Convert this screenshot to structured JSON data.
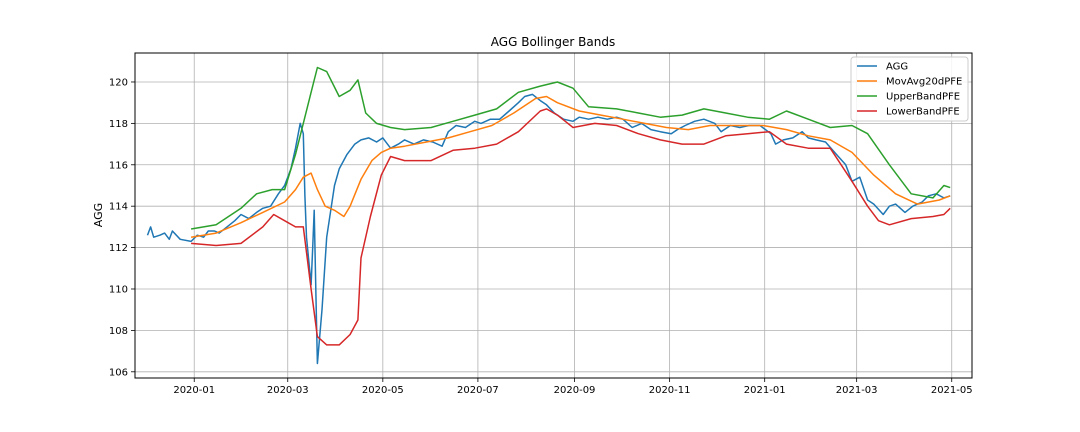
{
  "chart_data": {
    "type": "line",
    "title": "AGG Bollinger Bands",
    "xlabel": "",
    "ylabel": "AGG",
    "x_range": [
      "2019-11-24",
      "2021-05-14"
    ],
    "ylim": [
      105.7,
      121.4
    ],
    "grid": true,
    "legend_position": "top-right",
    "x_ticks": [
      "2020-01",
      "2020-03",
      "2020-05",
      "2020-07",
      "2020-09",
      "2020-11",
      "2021-01",
      "2021-03",
      "2021-05"
    ],
    "x_tick_labels": [
      "2020-01",
      "2020-03",
      "2020-05",
      "2020-07",
      "2020-09",
      "2020-11",
      "2021-01",
      "2021-03",
      "2021-05"
    ],
    "y_ticks": [
      106,
      108,
      110,
      112,
      114,
      116,
      118,
      120
    ],
    "series": [
      {
        "name": "AGG",
        "color": "#1f77b4",
        "points": [
          [
            "2019-12-02",
            112.6
          ],
          [
            "2019-12-04",
            113.0
          ],
          [
            "2019-12-06",
            112.5
          ],
          [
            "2019-12-10",
            112.6
          ],
          [
            "2019-12-13",
            112.7
          ],
          [
            "2019-12-16",
            112.4
          ],
          [
            "2019-12-18",
            112.8
          ],
          [
            "2019-12-23",
            112.4
          ],
          [
            "2019-12-30",
            112.3
          ],
          [
            "2020-01-03",
            112.6
          ],
          [
            "2020-01-07",
            112.5
          ],
          [
            "2020-01-10",
            112.8
          ],
          [
            "2020-01-14",
            112.8
          ],
          [
            "2020-01-17",
            112.7
          ],
          [
            "2020-01-22",
            113.0
          ],
          [
            "2020-01-27",
            113.3
          ],
          [
            "2020-01-31",
            113.6
          ],
          [
            "2020-02-05",
            113.4
          ],
          [
            "2020-02-10",
            113.7
          ],
          [
            "2020-02-14",
            113.9
          ],
          [
            "2020-02-19",
            114.0
          ],
          [
            "2020-02-24",
            114.6
          ],
          [
            "2020-02-28",
            115.0
          ],
          [
            "2020-03-03",
            115.8
          ],
          [
            "2020-03-06",
            116.8
          ],
          [
            "2020-03-09",
            118.0
          ],
          [
            "2020-03-11",
            117.5
          ],
          [
            "2020-03-12",
            114.5
          ],
          [
            "2020-03-13",
            112.5
          ],
          [
            "2020-03-16",
            110.2
          ],
          [
            "2020-03-17",
            112.0
          ],
          [
            "2020-03-18",
            113.8
          ],
          [
            "2020-03-19",
            110.0
          ],
          [
            "2020-03-20",
            106.4
          ],
          [
            "2020-03-23",
            109.0
          ],
          [
            "2020-03-26",
            112.5
          ],
          [
            "2020-03-31",
            115.0
          ],
          [
            "2020-04-03",
            115.8
          ],
          [
            "2020-04-08",
            116.5
          ],
          [
            "2020-04-13",
            117.0
          ],
          [
            "2020-04-17",
            117.2
          ],
          [
            "2020-04-22",
            117.3
          ],
          [
            "2020-04-27",
            117.1
          ],
          [
            "2020-05-01",
            117.3
          ],
          [
            "2020-05-06",
            116.8
          ],
          [
            "2020-05-11",
            117.0
          ],
          [
            "2020-05-15",
            117.2
          ],
          [
            "2020-05-21",
            117.0
          ],
          [
            "2020-05-27",
            117.2
          ],
          [
            "2020-06-02",
            117.1
          ],
          [
            "2020-06-08",
            116.9
          ],
          [
            "2020-06-12",
            117.6
          ],
          [
            "2020-06-17",
            117.9
          ],
          [
            "2020-06-23",
            117.8
          ],
          [
            "2020-06-29",
            118.1
          ],
          [
            "2020-07-03",
            118.0
          ],
          [
            "2020-07-09",
            118.2
          ],
          [
            "2020-07-15",
            118.2
          ],
          [
            "2020-07-21",
            118.6
          ],
          [
            "2020-07-27",
            119.0
          ],
          [
            "2020-07-31",
            119.3
          ],
          [
            "2020-08-05",
            119.4
          ],
          [
            "2020-08-10",
            119.1
          ],
          [
            "2020-08-14",
            118.9
          ],
          [
            "2020-08-19",
            118.5
          ],
          [
            "2020-08-25",
            118.2
          ],
          [
            "2020-08-31",
            118.1
          ],
          [
            "2020-09-04",
            118.3
          ],
          [
            "2020-09-10",
            118.2
          ],
          [
            "2020-09-16",
            118.3
          ],
          [
            "2020-09-22",
            118.2
          ],
          [
            "2020-09-28",
            118.3
          ],
          [
            "2020-10-02",
            118.2
          ],
          [
            "2020-10-08",
            117.8
          ],
          [
            "2020-10-14",
            118.0
          ],
          [
            "2020-10-20",
            117.7
          ],
          [
            "2020-10-26",
            117.6
          ],
          [
            "2020-11-02",
            117.5
          ],
          [
            "2020-11-06",
            117.7
          ],
          [
            "2020-11-11",
            117.9
          ],
          [
            "2020-11-17",
            118.1
          ],
          [
            "2020-11-23",
            118.2
          ],
          [
            "2020-11-30",
            118.0
          ],
          [
            "2020-12-04",
            117.6
          ],
          [
            "2020-12-10",
            117.9
          ],
          [
            "2020-12-16",
            117.8
          ],
          [
            "2020-12-22",
            117.9
          ],
          [
            "2020-12-29",
            117.9
          ],
          [
            "2021-01-05",
            117.5
          ],
          [
            "2021-01-08",
            117.0
          ],
          [
            "2021-01-13",
            117.2
          ],
          [
            "2021-01-19",
            117.3
          ],
          [
            "2021-01-25",
            117.6
          ],
          [
            "2021-01-29",
            117.3
          ],
          [
            "2021-02-03",
            117.2
          ],
          [
            "2021-02-09",
            117.1
          ],
          [
            "2021-02-16",
            116.5
          ],
          [
            "2021-02-22",
            116.0
          ],
          [
            "2021-02-26",
            115.2
          ],
          [
            "2021-03-03",
            115.4
          ],
          [
            "2021-03-08",
            114.3
          ],
          [
            "2021-03-12",
            114.1
          ],
          [
            "2021-03-18",
            113.6
          ],
          [
            "2021-03-22",
            114.0
          ],
          [
            "2021-03-26",
            114.1
          ],
          [
            "2021-04-01",
            113.7
          ],
          [
            "2021-04-06",
            114.0
          ],
          [
            "2021-04-12",
            114.2
          ],
          [
            "2021-04-16",
            114.5
          ],
          [
            "2021-04-21",
            114.6
          ],
          [
            "2021-04-26",
            114.4
          ],
          [
            "2021-04-30",
            114.5
          ]
        ]
      },
      {
        "name": "MovAvg20dPFE",
        "color": "#ff7f0e",
        "points": [
          [
            "2019-12-30",
            112.5
          ],
          [
            "2020-01-15",
            112.7
          ],
          [
            "2020-01-31",
            113.2
          ],
          [
            "2020-02-14",
            113.7
          ],
          [
            "2020-02-28",
            114.2
          ],
          [
            "2020-03-06",
            114.8
          ],
          [
            "2020-03-11",
            115.4
          ],
          [
            "2020-03-16",
            115.6
          ],
          [
            "2020-03-20",
            114.8
          ],
          [
            "2020-03-25",
            114.0
          ],
          [
            "2020-03-31",
            113.8
          ],
          [
            "2020-04-06",
            113.5
          ],
          [
            "2020-04-10",
            114.0
          ],
          [
            "2020-04-17",
            115.3
          ],
          [
            "2020-04-24",
            116.2
          ],
          [
            "2020-04-30",
            116.6
          ],
          [
            "2020-05-06",
            116.8
          ],
          [
            "2020-05-15",
            116.9
          ],
          [
            "2020-05-29",
            117.1
          ],
          [
            "2020-06-12",
            117.3
          ],
          [
            "2020-06-26",
            117.6
          ],
          [
            "2020-07-10",
            117.9
          ],
          [
            "2020-07-24",
            118.5
          ],
          [
            "2020-08-07",
            119.2
          ],
          [
            "2020-08-14",
            119.3
          ],
          [
            "2020-08-21",
            119.0
          ],
          [
            "2020-09-04",
            118.6
          ],
          [
            "2020-09-18",
            118.4
          ],
          [
            "2020-10-02",
            118.2
          ],
          [
            "2020-10-16",
            118.0
          ],
          [
            "2020-10-30",
            117.8
          ],
          [
            "2020-11-13",
            117.7
          ],
          [
            "2020-11-27",
            117.9
          ],
          [
            "2020-12-11",
            117.9
          ],
          [
            "2020-12-31",
            117.9
          ],
          [
            "2021-01-15",
            117.7
          ],
          [
            "2021-01-29",
            117.4
          ],
          [
            "2021-02-12",
            117.2
          ],
          [
            "2021-02-26",
            116.6
          ],
          [
            "2021-03-12",
            115.5
          ],
          [
            "2021-03-26",
            114.6
          ],
          [
            "2021-04-09",
            114.1
          ],
          [
            "2021-04-23",
            114.3
          ],
          [
            "2021-04-30",
            114.5
          ]
        ]
      },
      {
        "name": "UpperBandPFE",
        "color": "#2ca02c",
        "points": [
          [
            "2019-12-30",
            112.9
          ],
          [
            "2020-01-15",
            113.1
          ],
          [
            "2020-01-31",
            113.9
          ],
          [
            "2020-02-10",
            114.6
          ],
          [
            "2020-02-20",
            114.8
          ],
          [
            "2020-02-28",
            114.8
          ],
          [
            "2020-03-06",
            116.5
          ],
          [
            "2020-03-11",
            118.0
          ],
          [
            "2020-03-16",
            119.5
          ],
          [
            "2020-03-20",
            120.7
          ],
          [
            "2020-03-26",
            120.5
          ],
          [
            "2020-04-03",
            119.3
          ],
          [
            "2020-04-10",
            119.6
          ],
          [
            "2020-04-15",
            120.1
          ],
          [
            "2020-04-20",
            118.5
          ],
          [
            "2020-04-27",
            118.0
          ],
          [
            "2020-05-06",
            117.8
          ],
          [
            "2020-05-15",
            117.7
          ],
          [
            "2020-06-01",
            117.8
          ],
          [
            "2020-06-15",
            118.1
          ],
          [
            "2020-06-29",
            118.4
          ],
          [
            "2020-07-13",
            118.7
          ],
          [
            "2020-07-27",
            119.5
          ],
          [
            "2020-08-10",
            119.8
          ],
          [
            "2020-08-21",
            120.0
          ],
          [
            "2020-08-31",
            119.7
          ],
          [
            "2020-09-10",
            118.8
          ],
          [
            "2020-09-28",
            118.7
          ],
          [
            "2020-10-12",
            118.5
          ],
          [
            "2020-10-26",
            118.3
          ],
          [
            "2020-11-09",
            118.4
          ],
          [
            "2020-11-23",
            118.7
          ],
          [
            "2020-12-07",
            118.5
          ],
          [
            "2020-12-21",
            118.3
          ],
          [
            "2021-01-04",
            118.2
          ],
          [
            "2021-01-15",
            118.6
          ],
          [
            "2021-01-29",
            118.2
          ],
          [
            "2021-02-12",
            117.8
          ],
          [
            "2021-02-26",
            117.9
          ],
          [
            "2021-03-08",
            117.5
          ],
          [
            "2021-03-22",
            116.0
          ],
          [
            "2021-04-05",
            114.6
          ],
          [
            "2021-04-19",
            114.4
          ],
          [
            "2021-04-26",
            115.0
          ],
          [
            "2021-04-30",
            114.9
          ]
        ]
      },
      {
        "name": "LowerBandPFE",
        "color": "#d62728",
        "points": [
          [
            "2019-12-30",
            112.2
          ],
          [
            "2020-01-15",
            112.1
          ],
          [
            "2020-01-31",
            112.2
          ],
          [
            "2020-02-14",
            113.0
          ],
          [
            "2020-02-21",
            113.6
          ],
          [
            "2020-02-28",
            113.3
          ],
          [
            "2020-03-06",
            113.0
          ],
          [
            "2020-03-11",
            113.0
          ],
          [
            "2020-03-16",
            110.0
          ],
          [
            "2020-03-20",
            107.7
          ],
          [
            "2020-03-26",
            107.3
          ],
          [
            "2020-04-03",
            107.3
          ],
          [
            "2020-04-10",
            107.8
          ],
          [
            "2020-04-15",
            108.5
          ],
          [
            "2020-04-17",
            111.5
          ],
          [
            "2020-04-23",
            113.5
          ],
          [
            "2020-04-30",
            115.5
          ],
          [
            "2020-05-06",
            116.4
          ],
          [
            "2020-05-15",
            116.2
          ],
          [
            "2020-06-01",
            116.2
          ],
          [
            "2020-06-15",
            116.7
          ],
          [
            "2020-06-29",
            116.8
          ],
          [
            "2020-07-13",
            117.0
          ],
          [
            "2020-07-27",
            117.6
          ],
          [
            "2020-08-10",
            118.6
          ],
          [
            "2020-08-14",
            118.7
          ],
          [
            "2020-08-21",
            118.4
          ],
          [
            "2020-08-31",
            117.8
          ],
          [
            "2020-09-14",
            118.0
          ],
          [
            "2020-09-28",
            117.9
          ],
          [
            "2020-10-12",
            117.5
          ],
          [
            "2020-10-26",
            117.2
          ],
          [
            "2020-11-09",
            117.0
          ],
          [
            "2020-11-23",
            117.0
          ],
          [
            "2020-12-07",
            117.4
          ],
          [
            "2020-12-21",
            117.5
          ],
          [
            "2021-01-04",
            117.6
          ],
          [
            "2021-01-15",
            117.0
          ],
          [
            "2021-01-29",
            116.8
          ],
          [
            "2021-02-12",
            116.8
          ],
          [
            "2021-02-26",
            115.2
          ],
          [
            "2021-03-08",
            114.0
          ],
          [
            "2021-03-15",
            113.3
          ],
          [
            "2021-03-22",
            113.1
          ],
          [
            "2021-04-05",
            113.4
          ],
          [
            "2021-04-19",
            113.5
          ],
          [
            "2021-04-26",
            113.6
          ],
          [
            "2021-04-30",
            113.9
          ]
        ]
      }
    ]
  }
}
